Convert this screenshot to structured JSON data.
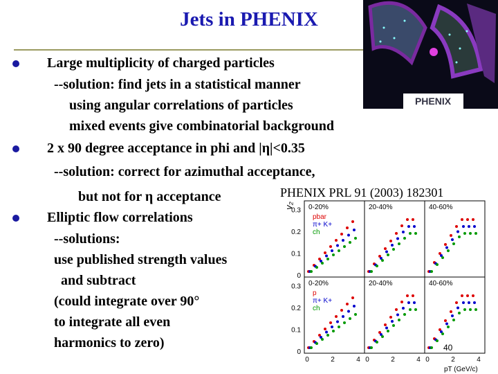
{
  "title": "Jets in PHENIX",
  "bullets": [
    {
      "text": "Large multiplicity of charged particles",
      "lines": [
        "--solution: find jets in a statistical manner",
        "using angular correlations of particles",
        "mixed events give combinatorial background"
      ]
    },
    {
      "text": "2 x 90 degree acceptance in phi and |η|<0.35",
      "lines": [
        "--solution: correct for azimuthal acceptance,",
        "but not for η acceptance"
      ]
    },
    {
      "text": "Elliptic flow correlations",
      "lines": [
        "--solutions:",
        "use published strength values",
        "and subtract",
        "(could integrate over 90°",
        "to integrate all even",
        "harmonics to zero)"
      ]
    }
  ],
  "logo": "PHENIX",
  "figure": {
    "caption": "PHENIX PRL 91 (2003) 182301",
    "y_label": "v₂",
    "x_label": "pT (GeV/c)",
    "panel_labels": [
      "0-20%",
      "20-40%",
      "40-60%",
      "0-20%",
      "20-40%",
      "40-60%"
    ],
    "legends": [
      [
        "pbar",
        "π+ K+",
        "ch"
      ],
      [
        "p",
        "π+ K+",
        "ch"
      ]
    ],
    "yticks": [
      "0.3",
      "0.2",
      "0.1",
      "0"
    ],
    "xticks": [
      "0",
      "2",
      "4"
    ]
  },
  "page_number": "40"
}
